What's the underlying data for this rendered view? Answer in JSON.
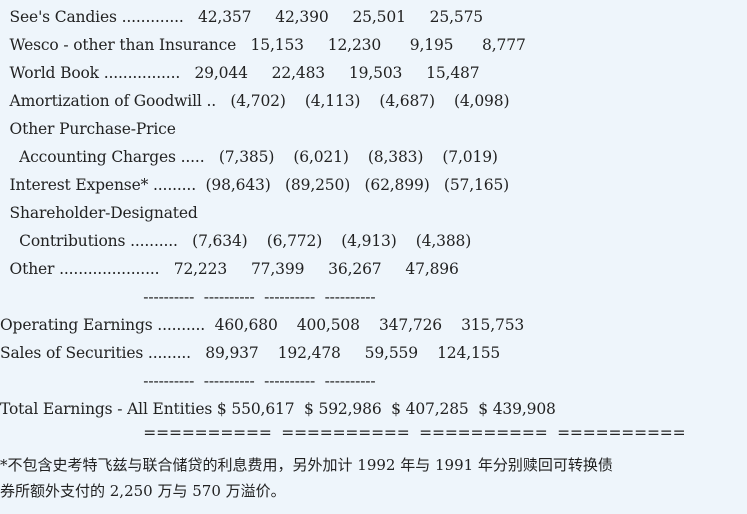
{
  "rows": [
    "  See's Candies .............   42,357     42,390     25,501     25,575",
    "  Wesco - other than Insurance   15,153     12,230      9,195      8,777",
    "  World Book ................   29,044     22,483     19,503     15,487",
    "  Amortization of Goodwill ..   (4,702)    (4,113)    (4,687)    (4,098)",
    "  Other Purchase-Price",
    "    Accounting Charges .....   (7,385)    (6,021)    (8,383)    (7,019)",
    "  Interest Expense* .........  (98,643)   (89,250)   (62,899)   (57,165)",
    "  Shareholder-Designated",
    "    Contributions ..........   (7,634)    (6,772)    (4,913)    (4,388)",
    "  Other .....................   72,223     77,399     36,267     47,896",
    "                              ----------  ----------  ----------  ----------",
    "Operating Earnings ..........  460,680    400,508    347,726    315,753",
    "Sales of Securities .........   89,937    192,478     59,559    124,155",
    "                              ----------  ----------  ----------  ----------",
    "Total Earnings - All Entities $ 550,617  $ 592,986  $ 407,285  $ 439,908",
    "                              ==========  ==========  ==========  =========="
  ],
  "footnote": {
    "line1": "*不包含史考特飞兹与联合储贷的利息费用，另外加计 1992 年与 1991 年分别赎回可转换债",
    "line2": "券所额外支付的 2,250 万与 570 万溢价。"
  }
}
